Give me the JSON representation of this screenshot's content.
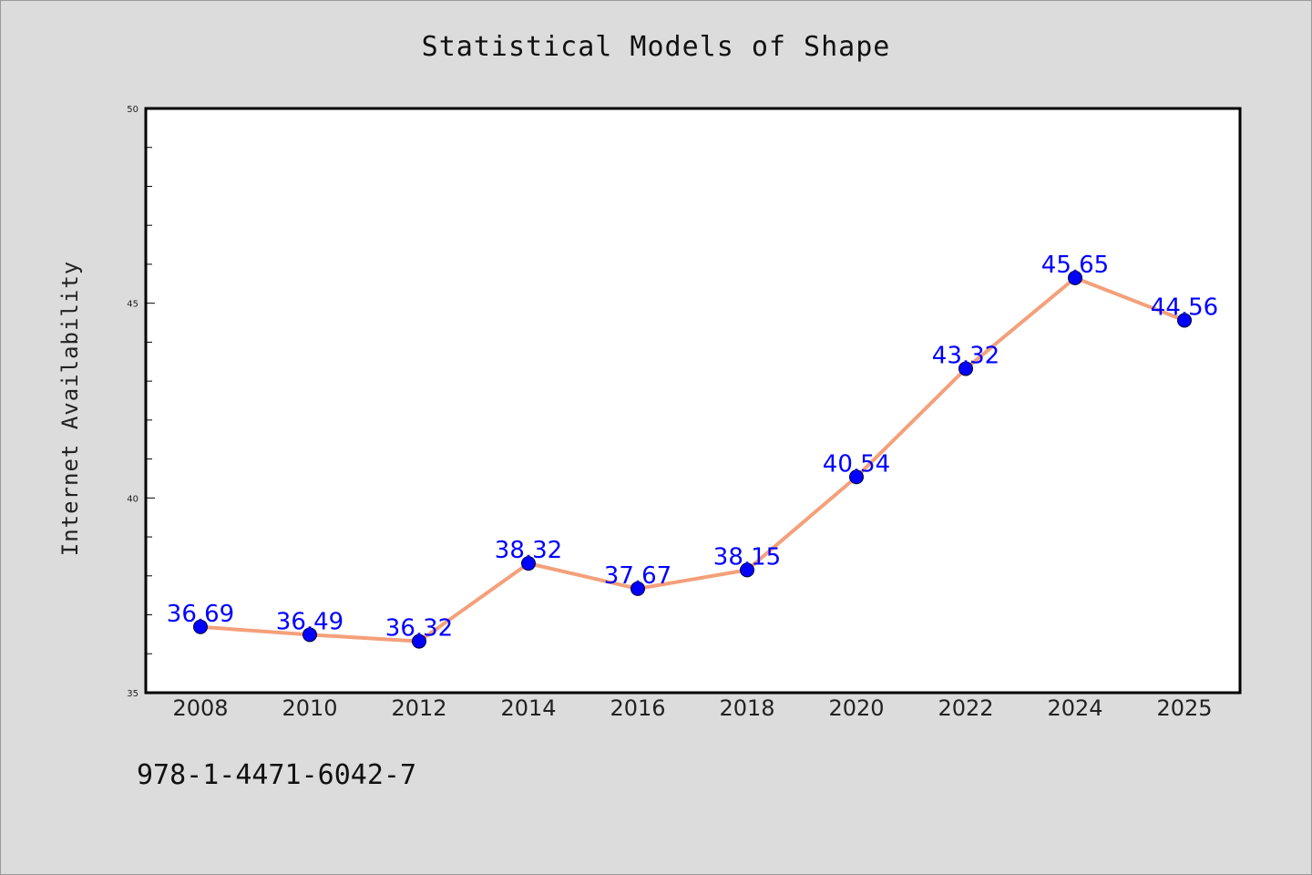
{
  "chart_data": {
    "type": "line",
    "title": "Statistical Models of Shape",
    "xlabel": "",
    "ylabel": "Internet Availability",
    "categories": [
      "2008",
      "2010",
      "2012",
      "2014",
      "2016",
      "2018",
      "2020",
      "2022",
      "2024",
      "2025"
    ],
    "series": [
      {
        "values": [
          36.69,
          36.49,
          36.32,
          38.32,
          37.67,
          38.15,
          40.54,
          43.32,
          45.65,
          44.56
        ]
      }
    ],
    "data_labels": [
      "36.69",
      "36.49",
      "36.32",
      "38.32",
      "37.67",
      "38.15",
      "40.54",
      "43.32",
      "45.65",
      "44.56"
    ],
    "ylim": [
      35,
      50
    ],
    "y_ticks": [
      "35",
      "40",
      "45",
      "50"
    ],
    "grid": false,
    "line_color": "#f4a07a",
    "marker_color": "#0000ff",
    "label_color": "#0000ff",
    "footer_text": "978-1-4471-6042-7"
  }
}
